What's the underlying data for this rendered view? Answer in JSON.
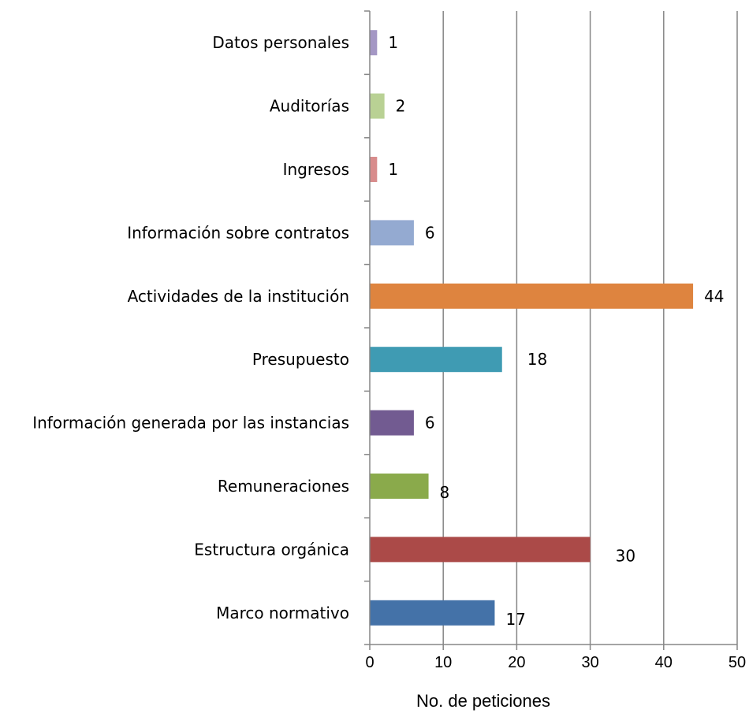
{
  "chart_data": {
    "type": "bar",
    "orientation": "horizontal",
    "categories": [
      "Datos personales",
      "Auditorías",
      "Ingresos",
      "Información sobre contratos",
      "Actividades de la institución",
      "Presupuesto",
      "Información generada por las instancias",
      "Remuneraciones",
      "Estructura orgánica",
      "Marco normativo"
    ],
    "values": [
      1,
      2,
      1,
      6,
      44,
      18,
      6,
      8,
      30,
      17
    ],
    "value_labels": [
      "1",
      "2",
      "1",
      "6",
      "44",
      "18",
      "6",
      "8",
      "30",
      "17"
    ],
    "colors": [
      "#8064A2",
      "#9BBB59",
      "#C0504D",
      "#4F81BD",
      "#F79646",
      "#4BACC6",
      "#8064A2",
      "#9BBB59",
      "#C0504D",
      "#4F81BD"
    ],
    "bar_color_hex": [
      "#A497C4",
      "#B9D194",
      "#D88C8C",
      "#94AAD1",
      "#DE843F",
      "#3F9BB3",
      "#725B91",
      "#8AAA4B",
      "#AB4A48",
      "#4472A8"
    ],
    "xlabel": "No. de peticiones",
    "xlim": [
      0,
      50
    ],
    "xticks": [
      "0",
      "10",
      "20",
      "30",
      "40",
      "50"
    ],
    "grid": true
  }
}
